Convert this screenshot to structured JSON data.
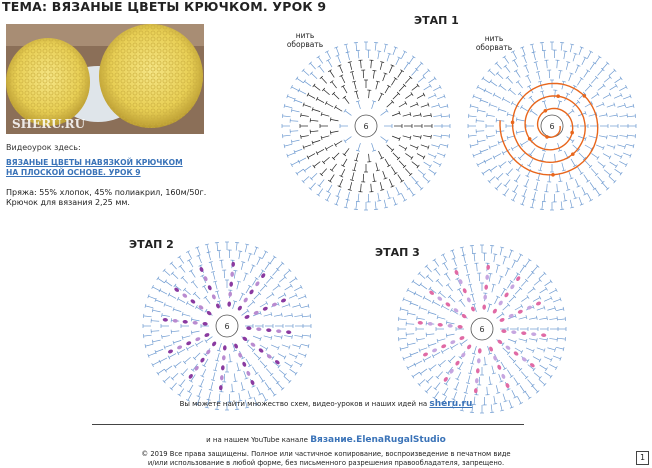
{
  "title": "ТЕМА: ВЯЗАНЫЕ ЦВЕТЫ КРЮЧКОМ. УРОК 9",
  "photo": {
    "watermark": "SHERU.RU"
  },
  "info": {
    "video_label": "Видеоурок здесь:",
    "link_line1": "ВЯЗАНЫЕ ЦВЕТЫ НАВЯЗКОЙ КРЮЧКОМ",
    "link_line2": "НА ПЛОСКОЙ ОСНОВЕ. УРОК 9",
    "yarn": "Пряжа: 55% хлопок, 45% полиакрил, 160м/50г.",
    "hook": "Крючок для вязания 2,25 мм."
  },
  "stages": {
    "stage1": "ЭТАП 1",
    "stage2": "ЭТАП 2",
    "stage3": "ЭТАП 3"
  },
  "notes": {
    "line1": "нить",
    "line2": "оборвать"
  },
  "center_number": "6",
  "colors": {
    "blue": "#6f9bd1",
    "black": "#222222",
    "orange": "#e8661c",
    "purple": "#8a3aa0",
    "pink": "#e06aa5",
    "link": "#3a73b8"
  },
  "footer": {
    "line1": "Вы можете найти множество схем, видео-уроков и наших идей на",
    "site": "sheru.ru",
    "line2": "и на нашем YouTube канале",
    "channel": "Вязание.ElenaRugalStudio",
    "copyright1": "© 2019 Все права защищены. Полное или частичное копирование, воспроизведение в печатном виде",
    "copyright2": "и/или использование в любой форме, без письменного разрешения правообладателя, запрещено.",
    "page": "1"
  }
}
